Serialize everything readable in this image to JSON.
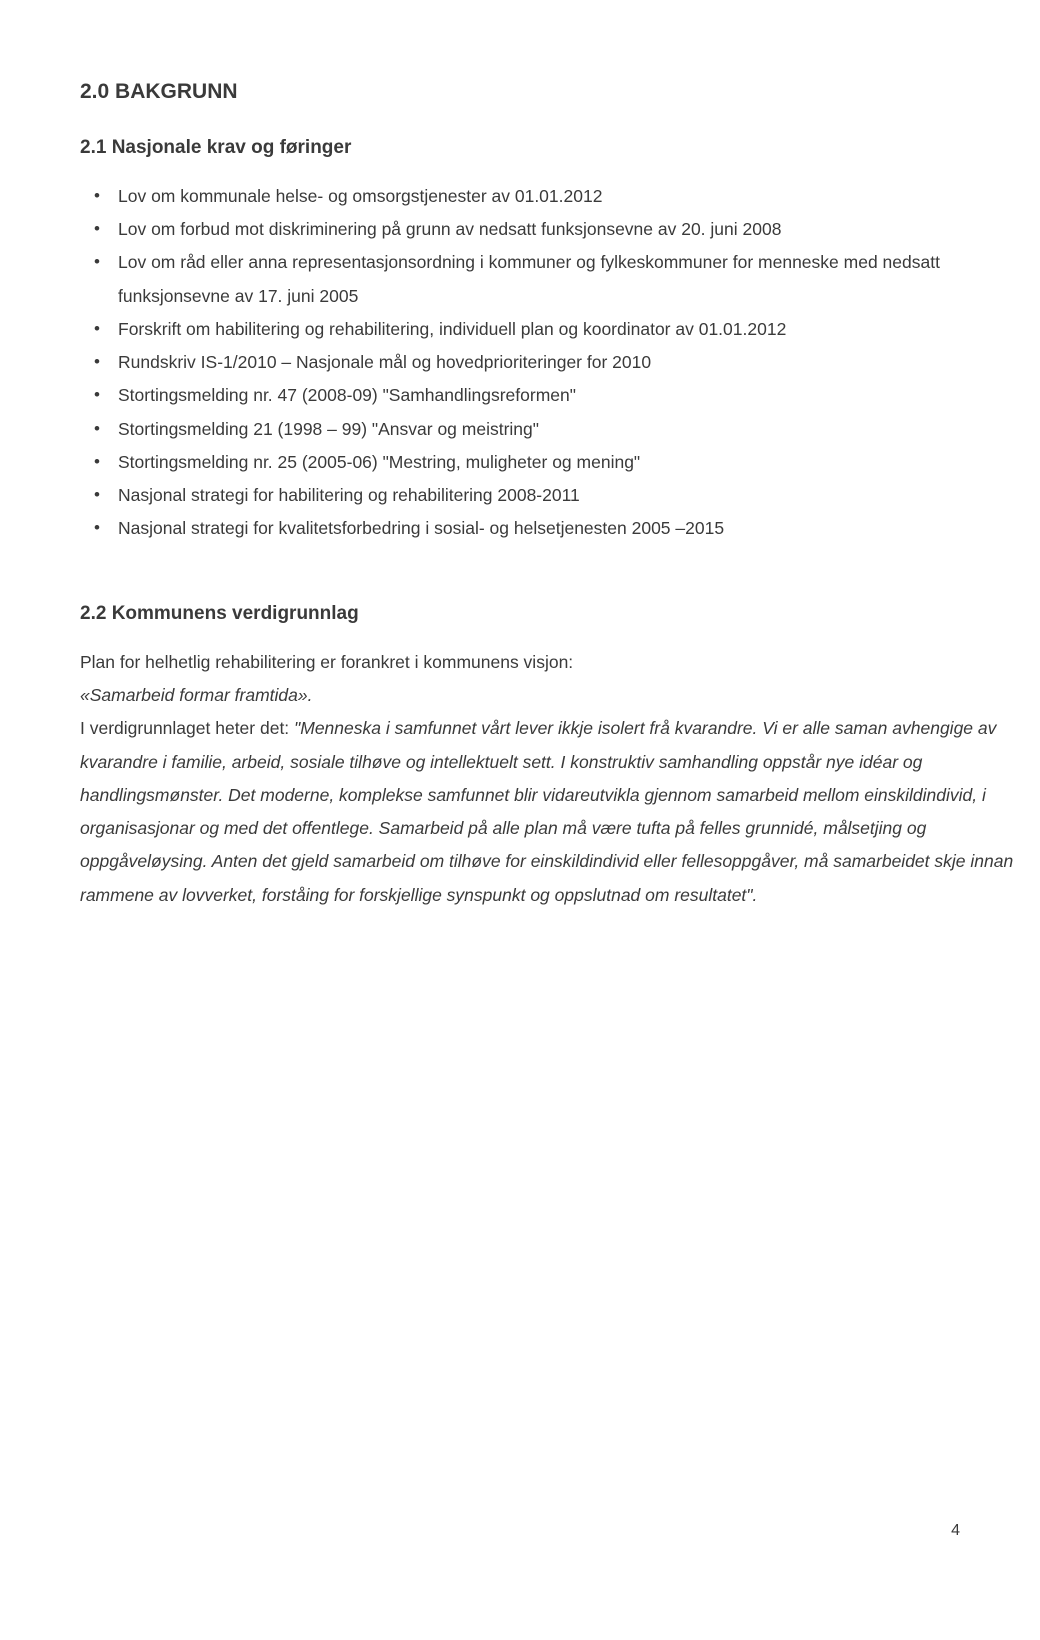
{
  "section1": {
    "heading": "2.0 BAKGRUNN",
    "sub1": {
      "heading": "2.1 Nasjonale krav og føringer",
      "items": [
        "Lov om kommunale helse- og omsorgstjenester av 01.01.2012",
        "Lov om forbud mot diskriminering på grunn av nedsatt funksjonsevne av 20. juni 2008",
        "Lov om råd eller anna representasjonsordning i kommuner og fylkeskommuner for menneske med nedsatt funksjonsevne av 17. juni 2005",
        "Forskrift om habilitering og rehabilitering, individuell plan og koordinator av 01.01.2012",
        "Rundskriv IS-1/2010 – Nasjonale mål og hovedprioriteringer for 2010",
        "Stortingsmelding nr. 47 (2008-09) \"Samhandlingsreformen\"",
        "Stortingsmelding 21 (1998 – 99) \"Ansvar og meistring\"",
        "Stortingsmelding nr. 25 (2005-06) \"Mestring, muligheter og mening\"",
        "Nasjonal strategi for habilitering og rehabilitering 2008-2011",
        "Nasjonal strategi for kvalitetsforbedring i sosial- og helsetjenesten 2005 –2015"
      ]
    },
    "sub2": {
      "heading": "2.2 Kommunens verdigrunnlag",
      "para1_a": "Plan for helhetlig rehabilitering er forankret i kommunens visjon:",
      "para1_b": "«Samarbeid formar framtida».",
      "para2_a": " I verdigrunnlaget heter det: ",
      "para2_b": "\"Menneska i samfunnet vårt lever ikkje isolert frå kvarandre. Vi er alle saman avhengige av kvarandre i familie, arbeid, sosiale tilhøve og intellektuelt sett. I konstruktiv samhandling oppstår nye idéar og handlingsmønster. Det moderne, komplekse samfunnet blir vidareutvikla gjennom samarbeid mellom einskildindivid, i organisasjonar og med det offentlege. Samarbeid på alle plan må være tufta på felles grunnidé, målsetjing og oppgåveløysing. Anten det gjeld samarbeid om tilhøve for einskildindivid eller fellesoppgåver, må samarbeidet skje innan rammene av lovverket, forståing for forskjellige synspunkt og oppslutnad om resultatet\"."
    }
  },
  "page_number": "4"
}
